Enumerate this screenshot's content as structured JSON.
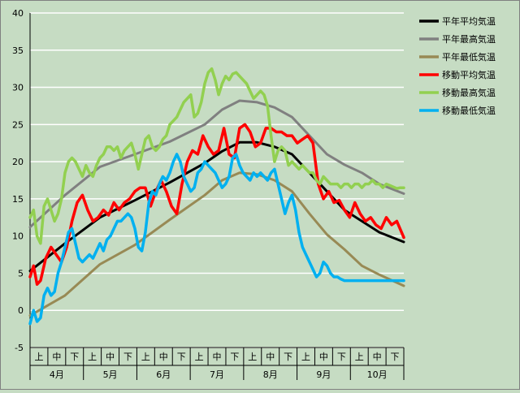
{
  "colors": {
    "background": "#c6dcc3",
    "plot_area": "#c6dcc3",
    "gridline": "#ffffff",
    "axis": "#000000"
  },
  "chart_data": {
    "type": "line",
    "title": "",
    "xlabel": "",
    "ylabel": "",
    "ylim": [
      -5,
      40
    ],
    "yticks": [
      -5,
      0,
      5,
      10,
      15,
      20,
      25,
      30,
      35,
      40
    ],
    "grid": true,
    "legend_position": "right",
    "month_labels": [
      "4月",
      "5月",
      "6月",
      "7月",
      "8月",
      "9月",
      "10月"
    ],
    "period_labels": [
      "上",
      "中",
      "下"
    ],
    "x_units": "days from April 1 to October 31",
    "x_range": [
      0,
      214
    ],
    "series": [
      {
        "name": "平年平均気温",
        "color": "#000000",
        "x": [
          0,
          20,
          40,
          60,
          80,
          100,
          110,
          120,
          130,
          140,
          150,
          160,
          170,
          180,
          190,
          200,
          214
        ],
        "values": [
          5.3,
          9.0,
          12.5,
          14.8,
          17.2,
          19.8,
          21.4,
          22.6,
          22.6,
          22.0,
          21.0,
          18.5,
          16.0,
          13.5,
          12.0,
          10.5,
          9.2
        ]
      },
      {
        "name": "平年最高気温",
        "color": "#808080",
        "x": [
          0,
          20,
          40,
          60,
          80,
          100,
          110,
          120,
          130,
          140,
          150,
          160,
          170,
          180,
          190,
          200,
          214
        ],
        "values": [
          11.2,
          15.5,
          19.3,
          21.0,
          22.7,
          25.0,
          27.0,
          28.2,
          28.0,
          27.3,
          26.0,
          23.5,
          21.0,
          19.6,
          18.5,
          17.0,
          15.7
        ]
      },
      {
        "name": "平年最低気温",
        "color": "#988a55",
        "x": [
          0,
          20,
          40,
          60,
          80,
          100,
          110,
          120,
          130,
          140,
          150,
          160,
          170,
          180,
          190,
          200,
          214
        ],
        "values": [
          -0.7,
          2.0,
          6.2,
          8.8,
          12.2,
          15.5,
          17.5,
          18.5,
          18.3,
          17.5,
          16.0,
          13.0,
          10.2,
          8.2,
          6.0,
          4.8,
          3.3
        ]
      },
      {
        "name": "移動平均気温",
        "color": "#ff0000",
        "x": [
          0,
          2,
          4,
          6,
          9,
          12,
          15,
          18,
          21,
          24,
          27,
          30,
          33,
          36,
          39,
          42,
          45,
          48,
          51,
          54,
          57,
          60,
          63,
          66,
          69,
          72,
          75,
          78,
          81,
          84,
          87,
          90,
          93,
          96,
          99,
          102,
          105,
          108,
          111,
          114,
          117,
          120,
          123,
          126,
          129,
          132,
          135,
          138,
          141,
          144,
          147,
          150,
          153,
          156,
          159,
          162,
          165,
          168,
          171,
          174,
          177,
          180,
          183,
          186,
          189,
          192,
          195,
          198,
          201,
          204,
          207,
          210,
          214
        ],
        "values": [
          4.5,
          6.0,
          3.5,
          4.0,
          7.0,
          8.5,
          7.5,
          6.5,
          8.5,
          12.0,
          14.5,
          15.5,
          13.5,
          12.0,
          12.5,
          13.5,
          12.8,
          14.5,
          13.5,
          14.5,
          15.0,
          16.0,
          16.5,
          16.5,
          14.0,
          16.0,
          17.5,
          16.0,
          14.0,
          13.0,
          17.0,
          20.0,
          21.5,
          21.0,
          23.5,
          22.0,
          21.0,
          21.5,
          24.5,
          21.0,
          20.5,
          24.5,
          25.0,
          24.0,
          22.0,
          22.5,
          24.5,
          24.5,
          24.0,
          24.0,
          23.5,
          23.5,
          22.5,
          23.0,
          23.5,
          22.5,
          17.0,
          15.0,
          16.0,
          14.5,
          14.8,
          13.5,
          12.5,
          14.5,
          13.0,
          12.0,
          12.5,
          11.5,
          11.0,
          12.5,
          11.5,
          12.0,
          9.8
        ]
      },
      {
        "name": "移動最高気温",
        "color": "#92d050",
        "x": [
          0,
          2,
          4,
          6,
          8,
          10,
          12,
          14,
          16,
          18,
          20,
          22,
          24,
          26,
          28,
          30,
          32,
          34,
          36,
          38,
          40,
          42,
          44,
          46,
          48,
          50,
          52,
          54,
          56,
          58,
          60,
          62,
          64,
          66,
          68,
          70,
          72,
          74,
          76,
          78,
          80,
          82,
          84,
          86,
          88,
          90,
          92,
          94,
          96,
          98,
          100,
          102,
          104,
          106,
          108,
          110,
          112,
          114,
          116,
          118,
          120,
          122,
          124,
          126,
          128,
          130,
          132,
          134,
          136,
          138,
          140,
          142,
          144,
          146,
          148,
          150,
          152,
          154,
          156,
          158,
          160,
          162,
          164,
          166,
          168,
          170,
          172,
          174,
          176,
          178,
          180,
          182,
          184,
          186,
          188,
          190,
          192,
          194,
          196,
          198,
          200,
          202,
          204,
          206,
          208,
          210,
          212,
          214
        ],
        "values": [
          12.5,
          13.5,
          10.0,
          9.0,
          14.0,
          15.0,
          13.5,
          12.0,
          13.0,
          15.0,
          18.5,
          20.0,
          20.5,
          20.0,
          19.0,
          18.0,
          19.5,
          18.5,
          18.0,
          19.5,
          20.5,
          21.0,
          22.0,
          22.0,
          21.5,
          22.0,
          20.5,
          21.5,
          22.0,
          22.5,
          21.0,
          19.0,
          21.0,
          23.0,
          23.5,
          22.0,
          21.5,
          22.0,
          23.0,
          23.5,
          25.0,
          25.5,
          26.0,
          27.0,
          28.0,
          28.5,
          29.0,
          26.0,
          26.5,
          28.0,
          30.5,
          32.0,
          32.5,
          31.0,
          29.0,
          30.5,
          31.5,
          31.0,
          31.8,
          32.0,
          31.5,
          31.0,
          30.5,
          29.5,
          28.5,
          29.0,
          29.5,
          29.0,
          27.5,
          23.5,
          20.0,
          21.5,
          22.0,
          21.5,
          19.5,
          20.0,
          19.5,
          19.0,
          19.5,
          19.0,
          18.5,
          18.5,
          17.5,
          17.0,
          18.0,
          17.5,
          17.0,
          17.0,
          17.0,
          16.5,
          17.0,
          17.0,
          16.5,
          17.0,
          17.0,
          16.5,
          17.0,
          17.0,
          17.5,
          17.0,
          17.0,
          16.5,
          17.0,
          16.8,
          16.6,
          16.4,
          16.5,
          16.5
        ]
      },
      {
        "name": "移動最低気温",
        "color": "#00b0f0",
        "x": [
          0,
          2,
          4,
          6,
          8,
          10,
          12,
          14,
          16,
          18,
          20,
          22,
          24,
          26,
          28,
          30,
          32,
          34,
          36,
          38,
          40,
          42,
          44,
          46,
          48,
          50,
          52,
          54,
          56,
          58,
          60,
          62,
          64,
          66,
          68,
          70,
          72,
          74,
          76,
          78,
          80,
          82,
          84,
          86,
          88,
          90,
          92,
          94,
          96,
          98,
          100,
          102,
          104,
          106,
          108,
          110,
          112,
          114,
          116,
          118,
          120,
          122,
          124,
          126,
          128,
          130,
          132,
          134,
          136,
          138,
          140,
          142,
          144,
          146,
          148,
          150,
          152,
          154,
          156,
          158,
          160,
          162,
          164,
          166,
          168,
          170,
          172,
          174,
          176,
          178,
          180,
          182,
          184,
          186,
          188,
          190,
          192,
          194,
          196,
          198,
          200,
          202,
          204,
          206,
          208,
          210,
          212,
          214
        ],
        "values": [
          -1.8,
          0.0,
          -1.5,
          -1.0,
          2.0,
          3.0,
          2.0,
          2.5,
          5.0,
          6.5,
          8.5,
          10.5,
          11.0,
          9.0,
          7.0,
          6.5,
          7.0,
          7.5,
          7.0,
          8.0,
          9.0,
          8.0,
          9.5,
          10.0,
          11.0,
          12.0,
          12.0,
          12.5,
          13.0,
          12.5,
          11.0,
          8.5,
          8.0,
          10.5,
          14.5,
          16.0,
          15.5,
          17.0,
          18.0,
          17.5,
          18.5,
          20.0,
          21.0,
          20.0,
          18.0,
          17.0,
          16.0,
          16.5,
          18.5,
          19.0,
          20.0,
          19.5,
          19.0,
          18.5,
          17.5,
          16.5,
          17.0,
          18.0,
          20.5,
          21.0,
          19.5,
          18.5,
          18.0,
          17.5,
          18.5,
          18.0,
          18.5,
          18.0,
          17.5,
          18.5,
          19.0,
          17.0,
          15.0,
          13.0,
          14.5,
          15.5,
          13.5,
          10.5,
          8.5,
          7.5,
          6.5,
          5.5,
          4.5,
          5.0,
          6.5,
          6.0,
          5.0,
          4.5,
          4.5,
          4.2,
          4.0,
          4.0,
          4.0,
          4.0,
          4.0,
          4.0,
          4.0,
          4.0,
          4.0,
          4.0,
          4.0,
          4.0,
          4.0,
          4.0,
          4.0,
          4.0,
          4.0,
          4.0
        ]
      }
    ]
  }
}
